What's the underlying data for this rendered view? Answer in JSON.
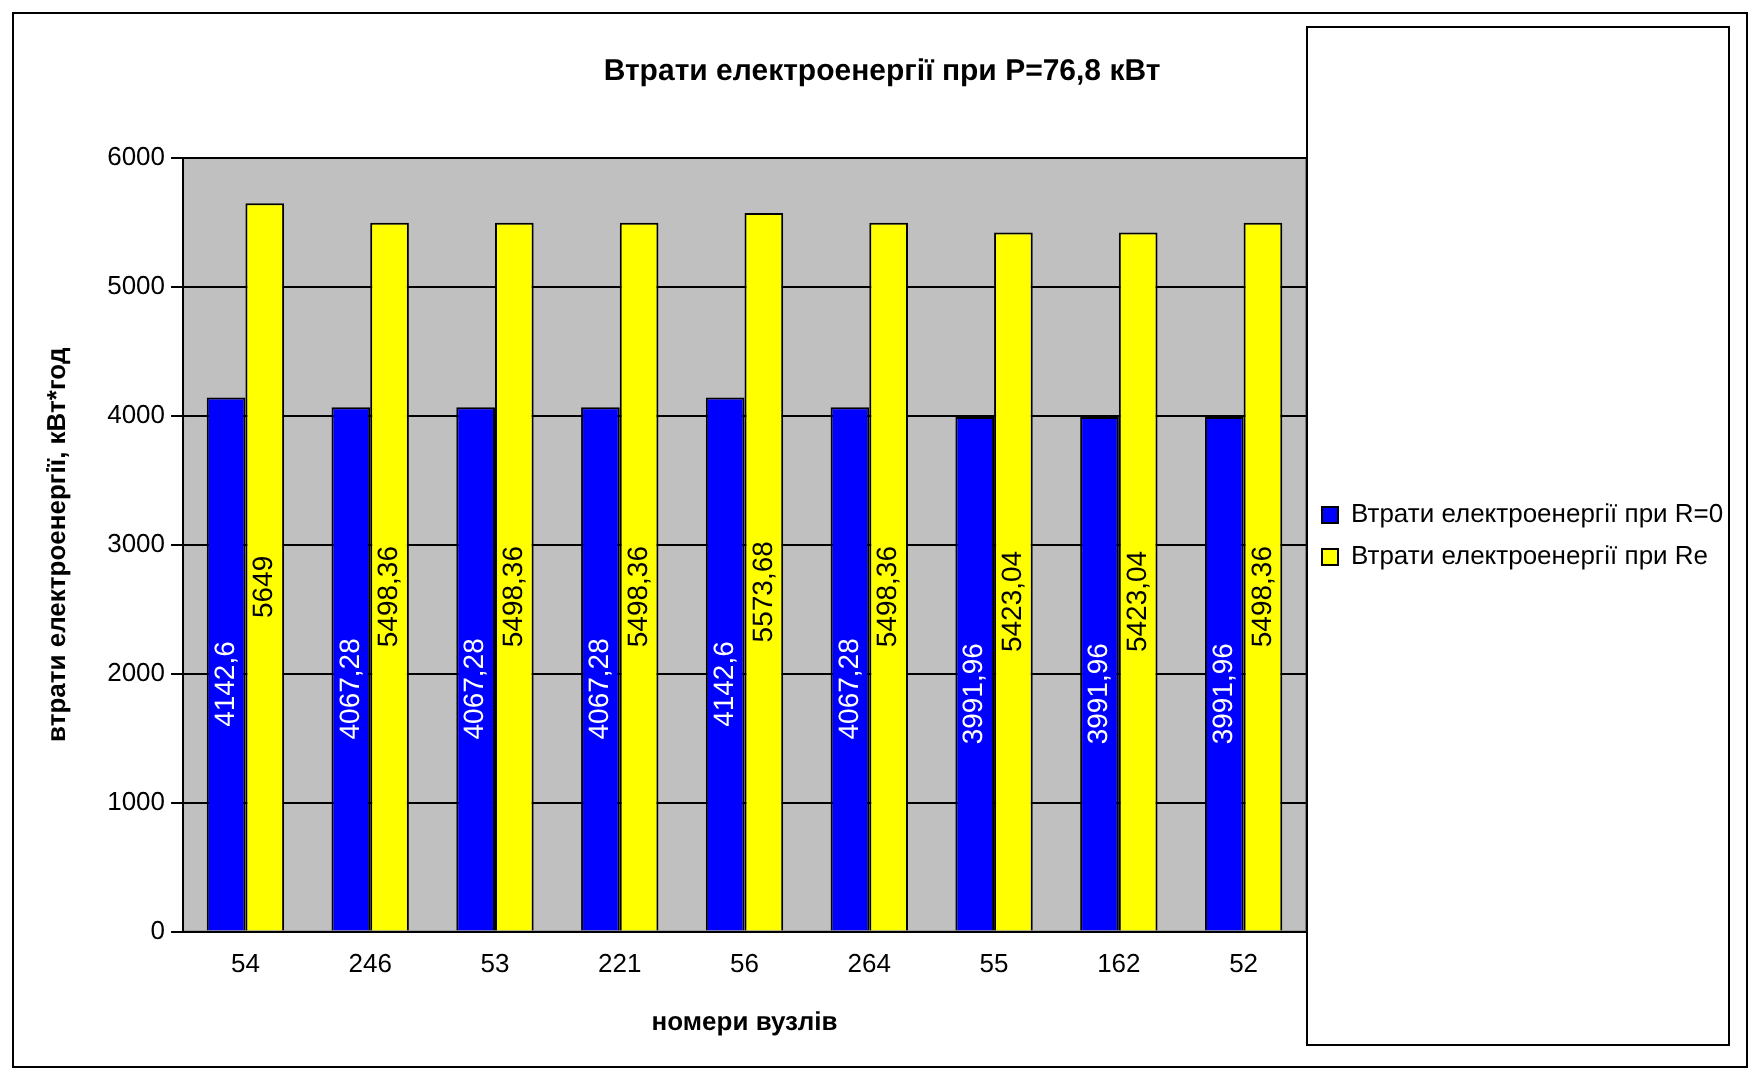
{
  "chart_data": {
    "type": "bar",
    "title": "Втрати електроенергії при P=76,8 кВт",
    "xlabel": "номери вузлів",
    "ylabel": "втрати електроенергії, кВт*год",
    "categories": [
      "54",
      "246",
      "53",
      "221",
      "56",
      "264",
      "55",
      "162",
      "52"
    ],
    "series": [
      {
        "name": "Втрати електроенергії при R=0",
        "color": "#0000ff",
        "values": [
          4142.6,
          4067.28,
          4067.28,
          4067.28,
          4142.6,
          4067.28,
          3991.96,
          3991.96,
          3991.96
        ],
        "value_labels": [
          "4142,6",
          "4067,28",
          "4067,28",
          "4067,28",
          "4142,6",
          "4067,28",
          "3991,96",
          "3991,96",
          "3991,96"
        ]
      },
      {
        "name": "Втрати електроенергії при Re",
        "color": "#ffff00",
        "values": [
          5649,
          5498.36,
          5498.36,
          5498.36,
          5573.68,
          5498.36,
          5423.04,
          5423.04,
          5498.36
        ],
        "value_labels": [
          "5649",
          "5498,36",
          "5498,36",
          "5498,36",
          "5573,68",
          "5498,36",
          "5423,04",
          "5423,04",
          "5498,36"
        ]
      }
    ],
    "ylim": [
      0,
      6000
    ],
    "yticks": [
      0,
      1000,
      2000,
      3000,
      4000,
      5000,
      6000
    ],
    "grid": "y",
    "legend": "right"
  }
}
